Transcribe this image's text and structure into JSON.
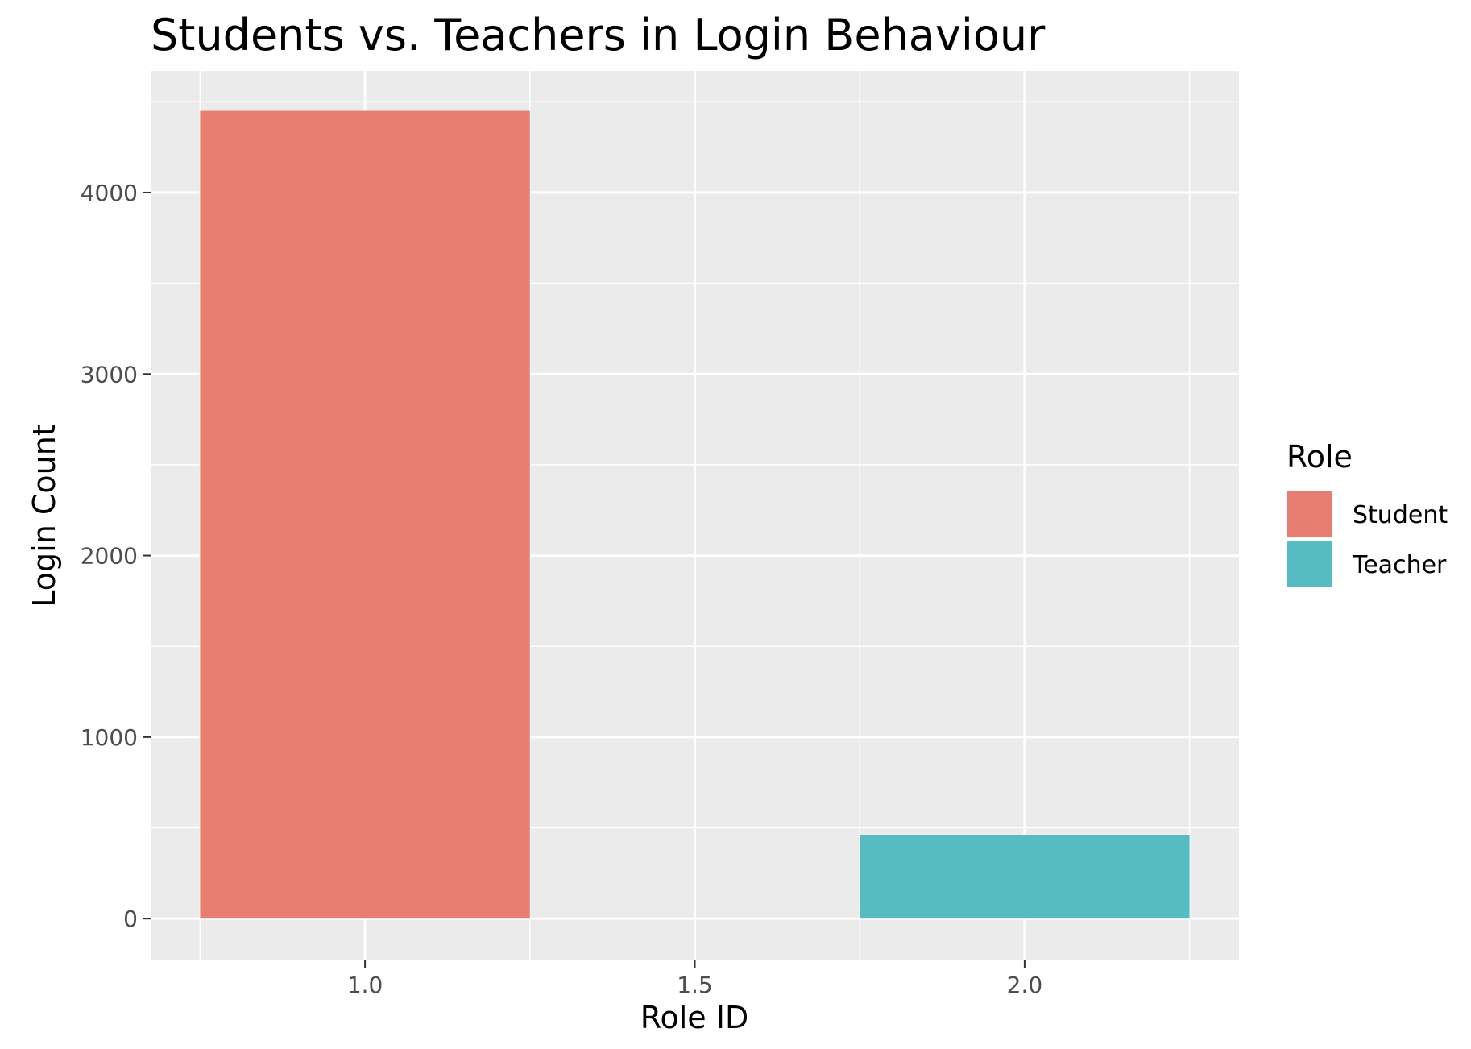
{
  "chart_data": {
    "type": "bar",
    "title": "Students vs. Teachers in Login Behaviour",
    "xlabel": "Role ID",
    "ylabel": "Login Count",
    "x_ticks": [
      "1.0",
      "1.5",
      "2.0"
    ],
    "y_ticks": [
      "0",
      "1000",
      "2000",
      "3000",
      "4000"
    ],
    "xlim": [
      0.675,
      2.325
    ],
    "ylim": [
      -230,
      4670
    ],
    "bar_width": 0.5,
    "series": [
      {
        "name": "Student",
        "x": 1,
        "value": 4450,
        "color": "#E87D72"
      },
      {
        "name": "Teacher",
        "x": 2,
        "value": 460,
        "color": "#56BCC2"
      }
    ],
    "legend": {
      "title": "Role",
      "position": "right",
      "items": [
        {
          "label": "Student",
          "color": "#E87D72"
        },
        {
          "label": "Teacher",
          "color": "#56BCC2"
        }
      ]
    },
    "grid": true,
    "panel_background": "#EBEBEB"
  }
}
